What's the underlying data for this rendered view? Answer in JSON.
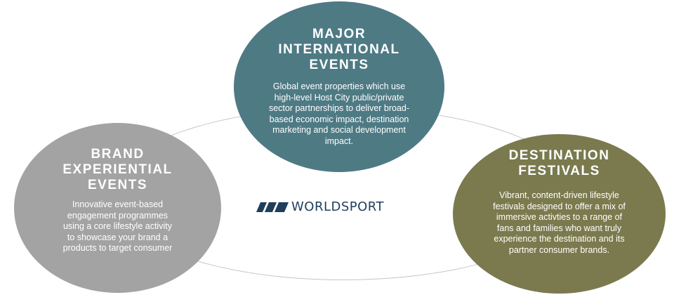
{
  "diagram": {
    "logo": {
      "text": "WORLDSPORT",
      "color": "#1f3e5c"
    },
    "circles": {
      "major": {
        "title": "MAJOR\nINTERNATIONAL\nEVENTS",
        "description": "Global event properties which use\nhigh-level Host City public/private\nsector partnerships to deliver broad-\nbased  economic impact, destination\nmarketing and social development\nimpact.",
        "color": "#4e7a84"
      },
      "brand": {
        "title": "BRAND\nEXPERIENTIAL\nEVENTS",
        "description": "Innovative event-based\nengagement programmes\nusing  a core lifestyle activity\nto showcase your brand a\nproducts to target consumer",
        "color": "#a3a3a3"
      },
      "destination": {
        "title": "DESTINATION\nFESTIVALS",
        "description": "Vibrant, content-driven lifestyle\nfestivals designed to offer a mix of\nimmersive activties to  a range of\nfans and families who want truly\nexperience the destination and its\npartner consumer brands.",
        "color": "#7a7a4e"
      }
    }
  }
}
